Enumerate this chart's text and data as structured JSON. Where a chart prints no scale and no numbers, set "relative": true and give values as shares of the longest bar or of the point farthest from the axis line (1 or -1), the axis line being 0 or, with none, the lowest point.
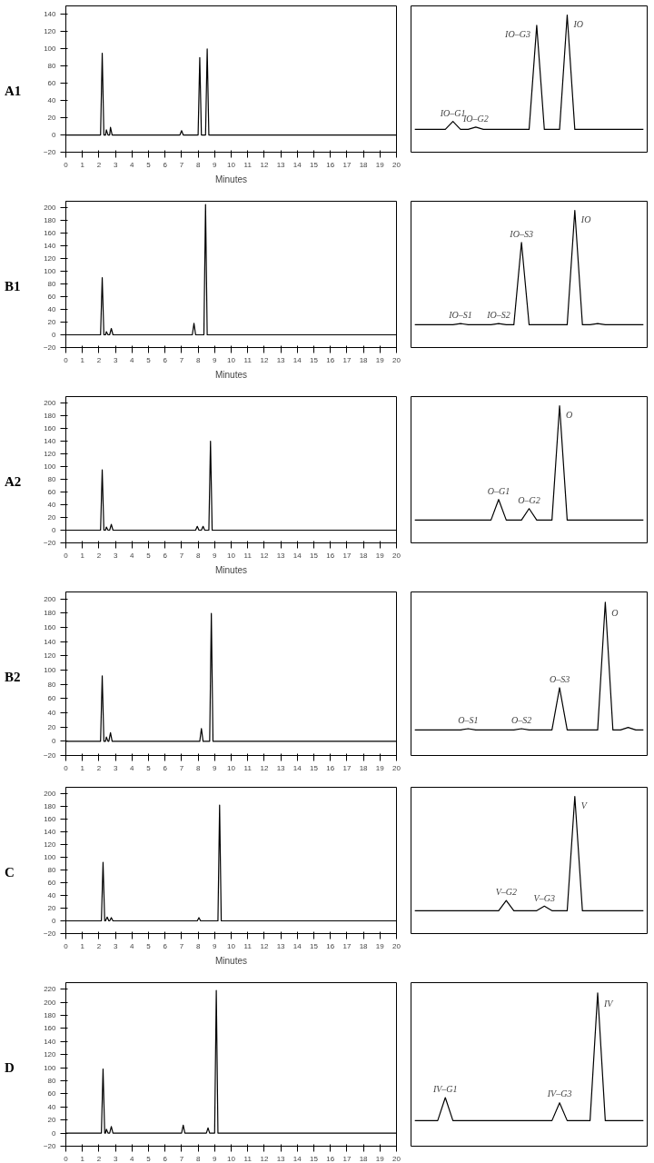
{
  "chart_data": [
    {
      "type": "line",
      "title": "A1",
      "xlabel": "Minutes",
      "xlim": [
        0,
        20
      ],
      "xticks": [
        0,
        1,
        2,
        3,
        4,
        5,
        6,
        7,
        8,
        9,
        10,
        11,
        12,
        13,
        14,
        15,
        16,
        17,
        18,
        19,
        20
      ],
      "ylim": [
        -20,
        150
      ],
      "yticks": [
        -20,
        0,
        20,
        40,
        60,
        80,
        100,
        120,
        140
      ],
      "grid": false,
      "series": [
        {
          "color": "#000000",
          "x": [
            0,
            2.1,
            2.2,
            2.3,
            2.4,
            2.45,
            2.55,
            2.65,
            2.7,
            2.8,
            6.9,
            7.0,
            7.1,
            8.0,
            8.1,
            8.2,
            8.45,
            8.55,
            8.65,
            20
          ],
          "values": [
            0,
            0,
            95,
            0,
            0,
            6,
            0,
            0,
            9,
            0,
            0,
            5,
            0,
            0,
            90,
            0,
            0,
            100,
            0,
            0
          ]
        }
      ]
    },
    {
      "type": "line",
      "relative": true,
      "tick_labels": false,
      "categories": [
        null,
        null,
        null,
        null,
        null,
        null,
        null,
        null,
        null,
        null,
        null,
        null,
        null,
        null,
        null,
        null,
        null,
        null,
        null,
        null,
        null,
        null,
        null,
        null,
        null,
        null,
        null,
        null,
        null,
        null,
        null
      ],
      "series": [
        {
          "color": "#000000",
          "values": [
            0,
            0,
            0,
            0,
            0,
            0.07,
            0,
            0,
            0.02,
            0,
            0,
            0,
            0,
            0,
            0,
            0,
            0.91,
            0,
            0,
            0,
            1,
            0,
            0,
            0,
            0,
            0,
            0,
            0,
            0,
            0,
            0
          ]
        }
      ],
      "annotations": [
        "IO–G1",
        "IO–G2",
        "IO–G3",
        "IO"
      ]
    },
    {
      "type": "line",
      "title": "B1",
      "xlabel": "Minutes",
      "xlim": [
        0,
        20
      ],
      "xticks": [
        0,
        1,
        2,
        3,
        4,
        5,
        6,
        7,
        8,
        9,
        10,
        11,
        12,
        13,
        14,
        15,
        16,
        17,
        18,
        19,
        20
      ],
      "ylim": [
        -20,
        210
      ],
      "yticks": [
        -20,
        0,
        20,
        40,
        60,
        80,
        100,
        120,
        140,
        160,
        180,
        200
      ],
      "grid": false,
      "series": [
        {
          "color": "#000000",
          "x": [
            0,
            2.1,
            2.2,
            2.3,
            2.4,
            2.45,
            2.55,
            2.65,
            2.75,
            2.85,
            7.65,
            7.75,
            7.85,
            8.35,
            8.45,
            8.55,
            20
          ],
          "values": [
            0,
            0,
            90,
            0,
            0,
            5,
            0,
            0,
            10,
            0,
            0,
            18,
            0,
            0,
            205,
            0,
            0
          ]
        }
      ]
    },
    {
      "type": "line",
      "relative": true,
      "tick_labels": false,
      "categories": [
        null,
        null,
        null,
        null,
        null,
        null,
        null,
        null,
        null,
        null,
        null,
        null,
        null,
        null,
        null,
        null,
        null,
        null,
        null,
        null,
        null,
        null,
        null,
        null,
        null,
        null,
        null,
        null,
        null,
        null,
        null
      ],
      "series": [
        {
          "color": "#000000",
          "values": [
            0,
            0,
            0,
            0,
            0,
            0,
            0.01,
            0,
            0,
            0,
            0,
            0.01,
            0,
            0,
            0.72,
            0,
            0,
            0,
            0,
            0,
            0,
            1,
            0,
            0,
            0.01,
            0,
            0,
            0,
            0,
            0,
            0
          ]
        }
      ],
      "annotations": [
        "IO–S1",
        "IO–S2",
        "IO–S3",
        "IO"
      ]
    },
    {
      "type": "line",
      "title": "A2",
      "xlabel": "Minutes",
      "xlim": [
        0,
        20
      ],
      "xticks": [
        0,
        1,
        2,
        3,
        4,
        5,
        6,
        7,
        8,
        9,
        10,
        11,
        12,
        13,
        14,
        15,
        16,
        17,
        18,
        19,
        20
      ],
      "ylim": [
        -20,
        210
      ],
      "yticks": [
        -20,
        0,
        20,
        40,
        60,
        80,
        100,
        120,
        140,
        160,
        180,
        200
      ],
      "grid": false,
      "series": [
        {
          "color": "#000000",
          "x": [
            0,
            2.1,
            2.2,
            2.3,
            2.4,
            2.45,
            2.55,
            2.65,
            2.75,
            2.85,
            7.85,
            7.95,
            8.05,
            8.2,
            8.3,
            8.4,
            8.65,
            8.75,
            8.85,
            20
          ],
          "values": [
            0,
            0,
            95,
            0,
            0,
            5,
            0,
            0,
            9,
            0,
            0,
            6,
            0,
            0,
            6,
            0,
            0,
            140,
            0,
            0
          ]
        }
      ]
    },
    {
      "type": "line",
      "relative": true,
      "tick_labels": false,
      "categories": [
        null,
        null,
        null,
        null,
        null,
        null,
        null,
        null,
        null,
        null,
        null,
        null,
        null,
        null,
        null,
        null,
        null,
        null,
        null,
        null,
        null,
        null,
        null,
        null,
        null,
        null,
        null,
        null,
        null,
        null,
        null
      ],
      "series": [
        {
          "color": "#000000",
          "values": [
            0,
            0,
            0,
            0,
            0,
            0,
            0,
            0,
            0,
            0,
            0,
            0.18,
            0,
            0,
            0,
            0.1,
            0,
            0,
            0,
            1,
            0,
            0,
            0,
            0,
            0,
            0,
            0,
            0,
            0,
            0,
            0
          ]
        }
      ],
      "annotations": [
        "O–G1",
        "O–G2",
        "O"
      ]
    },
    {
      "type": "line",
      "title": "B2",
      "xlim": [
        0,
        20
      ],
      "xticks": [
        0,
        1,
        2,
        3,
        4,
        5,
        6,
        7,
        8,
        9,
        10,
        11,
        12,
        13,
        14,
        15,
        16,
        17,
        18,
        19,
        20
      ],
      "ylim": [
        -20,
        210
      ],
      "yticks": [
        -20,
        0,
        20,
        40,
        60,
        80,
        100,
        120,
        140,
        160,
        180,
        200
      ],
      "grid": false,
      "series": [
        {
          "color": "#000000",
          "x": [
            0,
            2.1,
            2.2,
            2.3,
            2.4,
            2.45,
            2.55,
            2.6,
            2.7,
            2.8,
            8.1,
            8.2,
            8.3,
            8.7,
            8.8,
            8.9,
            20
          ],
          "values": [
            0,
            0,
            92,
            0,
            0,
            6,
            0,
            0,
            12,
            0,
            0,
            18,
            0,
            0,
            180,
            0,
            0
          ]
        }
      ]
    },
    {
      "type": "line",
      "relative": true,
      "tick_labels": false,
      "categories": [
        null,
        null,
        null,
        null,
        null,
        null,
        null,
        null,
        null,
        null,
        null,
        null,
        null,
        null,
        null,
        null,
        null,
        null,
        null,
        null,
        null,
        null,
        null,
        null,
        null,
        null,
        null,
        null,
        null,
        null,
        null
      ],
      "series": [
        {
          "color": "#000000",
          "values": [
            0,
            0,
            0,
            0,
            0,
            0,
            0,
            0.01,
            0,
            0,
            0,
            0,
            0,
            0,
            0.01,
            0,
            0,
            0,
            0,
            0.33,
            0,
            0,
            0,
            0,
            0,
            1,
            0,
            0,
            0.02,
            0,
            0
          ]
        }
      ],
      "annotations": [
        "O–S1",
        "O–S2",
        "O–S3",
        "O"
      ]
    },
    {
      "type": "line",
      "title": "C",
      "xlabel": "Minutes",
      "xlim": [
        0,
        20
      ],
      "xticks": [
        0,
        1,
        2,
        3,
        4,
        5,
        6,
        7,
        8,
        9,
        10,
        11,
        12,
        13,
        14,
        15,
        16,
        17,
        18,
        19,
        20
      ],
      "ylim": [
        -20,
        210
      ],
      "yticks": [
        -20,
        0,
        20,
        40,
        60,
        80,
        100,
        120,
        140,
        160,
        180,
        200
      ],
      "grid": false,
      "series": [
        {
          "color": "#000000",
          "x": [
            0,
            2.15,
            2.25,
            2.35,
            2.4,
            2.5,
            2.6,
            2.65,
            2.75,
            2.85,
            7.95,
            8.05,
            8.15,
            9.2,
            9.3,
            9.4,
            20
          ],
          "values": [
            0,
            0,
            92,
            0,
            0,
            6,
            0,
            0,
            5,
            0,
            0,
            5,
            0,
            0,
            182,
            0,
            0
          ]
        }
      ]
    },
    {
      "type": "line",
      "relative": true,
      "tick_labels": false,
      "categories": [
        null,
        null,
        null,
        null,
        null,
        null,
        null,
        null,
        null,
        null,
        null,
        null,
        null,
        null,
        null,
        null,
        null,
        null,
        null,
        null,
        null,
        null,
        null,
        null,
        null,
        null,
        null,
        null,
        null,
        null,
        null
      ],
      "series": [
        {
          "color": "#000000",
          "values": [
            0,
            0,
            0,
            0,
            0,
            0,
            0,
            0,
            0,
            0,
            0,
            0,
            0.09,
            0,
            0,
            0,
            0,
            0.04,
            0,
            0,
            0,
            1,
            0,
            0,
            0,
            0,
            0,
            0,
            0,
            0,
            0
          ]
        }
      ],
      "annotations": [
        "V–G2",
        "V–G3",
        "V"
      ]
    },
    {
      "type": "line",
      "title": "D",
      "xlim": [
        0,
        20
      ],
      "xticks": [
        0,
        1,
        2,
        3,
        4,
        5,
        6,
        7,
        8,
        9,
        10,
        11,
        12,
        13,
        14,
        15,
        16,
        17,
        18,
        19,
        20
      ],
      "ylim": [
        -20,
        230
      ],
      "yticks": [
        -20,
        0,
        20,
        40,
        60,
        80,
        100,
        120,
        140,
        160,
        180,
        200,
        220
      ],
      "grid": false,
      "series": [
        {
          "color": "#000000",
          "x": [
            0,
            2.15,
            2.25,
            2.35,
            2.4,
            2.45,
            2.55,
            2.65,
            2.75,
            2.85,
            7.0,
            7.1,
            7.2,
            8.5,
            8.6,
            8.7,
            9.0,
            9.1,
            9.2,
            20
          ],
          "values": [
            0,
            0,
            98,
            0,
            0,
            6,
            0,
            0,
            10,
            0,
            0,
            12,
            0,
            0,
            8,
            0,
            0,
            218,
            0,
            0
          ]
        }
      ]
    },
    {
      "type": "line",
      "relative": true,
      "tick_labels": false,
      "categories": [
        null,
        null,
        null,
        null,
        null,
        null,
        null,
        null,
        null,
        null,
        null,
        null,
        null,
        null,
        null,
        null,
        null,
        null,
        null,
        null,
        null,
        null,
        null,
        null,
        null,
        null,
        null,
        null,
        null,
        null,
        null
      ],
      "series": [
        {
          "color": "#000000",
          "values": [
            0,
            0,
            0,
            0,
            0.18,
            0,
            0,
            0,
            0,
            0,
            0,
            0,
            0,
            0,
            0,
            0,
            0,
            0,
            0,
            0.14,
            0,
            0,
            0,
            0,
            1,
            0,
            0,
            0,
            0,
            0,
            0
          ]
        }
      ],
      "annotations": [
        "IV–G1",
        "IV–G3",
        "IV"
      ]
    }
  ]
}
